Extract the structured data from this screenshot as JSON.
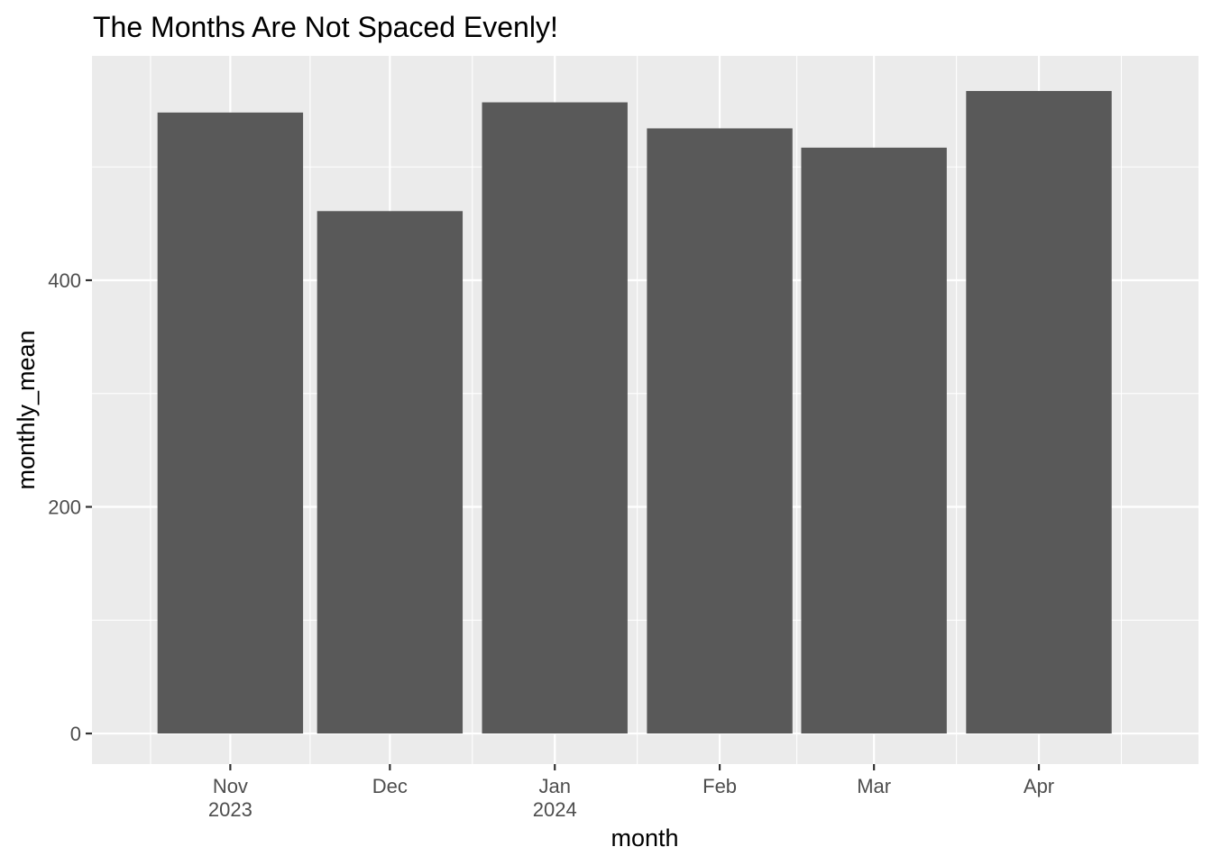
{
  "chart_data": {
    "type": "bar",
    "title": "The Months Are Not Spaced Evenly!",
    "xlabel": "month",
    "ylabel": "monthly_mean",
    "x_axis_type": "date",
    "x_range": [
      "2023-10-06",
      "2024-05-01"
    ],
    "ylim": [
      -27,
      598
    ],
    "y_ticks": [
      0,
      200,
      400
    ],
    "x_ticks": [
      {
        "date": "2023-11-01",
        "label": "Nov",
        "sublabel": "2023"
      },
      {
        "date": "2023-12-01",
        "label": "Dec",
        "sublabel": ""
      },
      {
        "date": "2024-01-01",
        "label": "Jan",
        "sublabel": "2024"
      },
      {
        "date": "2024-02-01",
        "label": "Feb",
        "sublabel": ""
      },
      {
        "date": "2024-03-01",
        "label": "Mar",
        "sublabel": ""
      },
      {
        "date": "2024-04-01",
        "label": "Apr",
        "sublabel": ""
      }
    ],
    "bars": [
      {
        "month": "2023-11-01",
        "value": 548
      },
      {
        "month": "2023-12-01",
        "value": 461
      },
      {
        "month": "2024-01-01",
        "value": 557
      },
      {
        "month": "2024-02-01",
        "value": 534
      },
      {
        "month": "2024-03-01",
        "value": 517
      },
      {
        "month": "2024-04-01",
        "value": 567
      }
    ],
    "bar_color": "#595959",
    "panel_color": "#ebebeb",
    "grid_color": "#ffffff",
    "grid": true,
    "legend": "none"
  }
}
